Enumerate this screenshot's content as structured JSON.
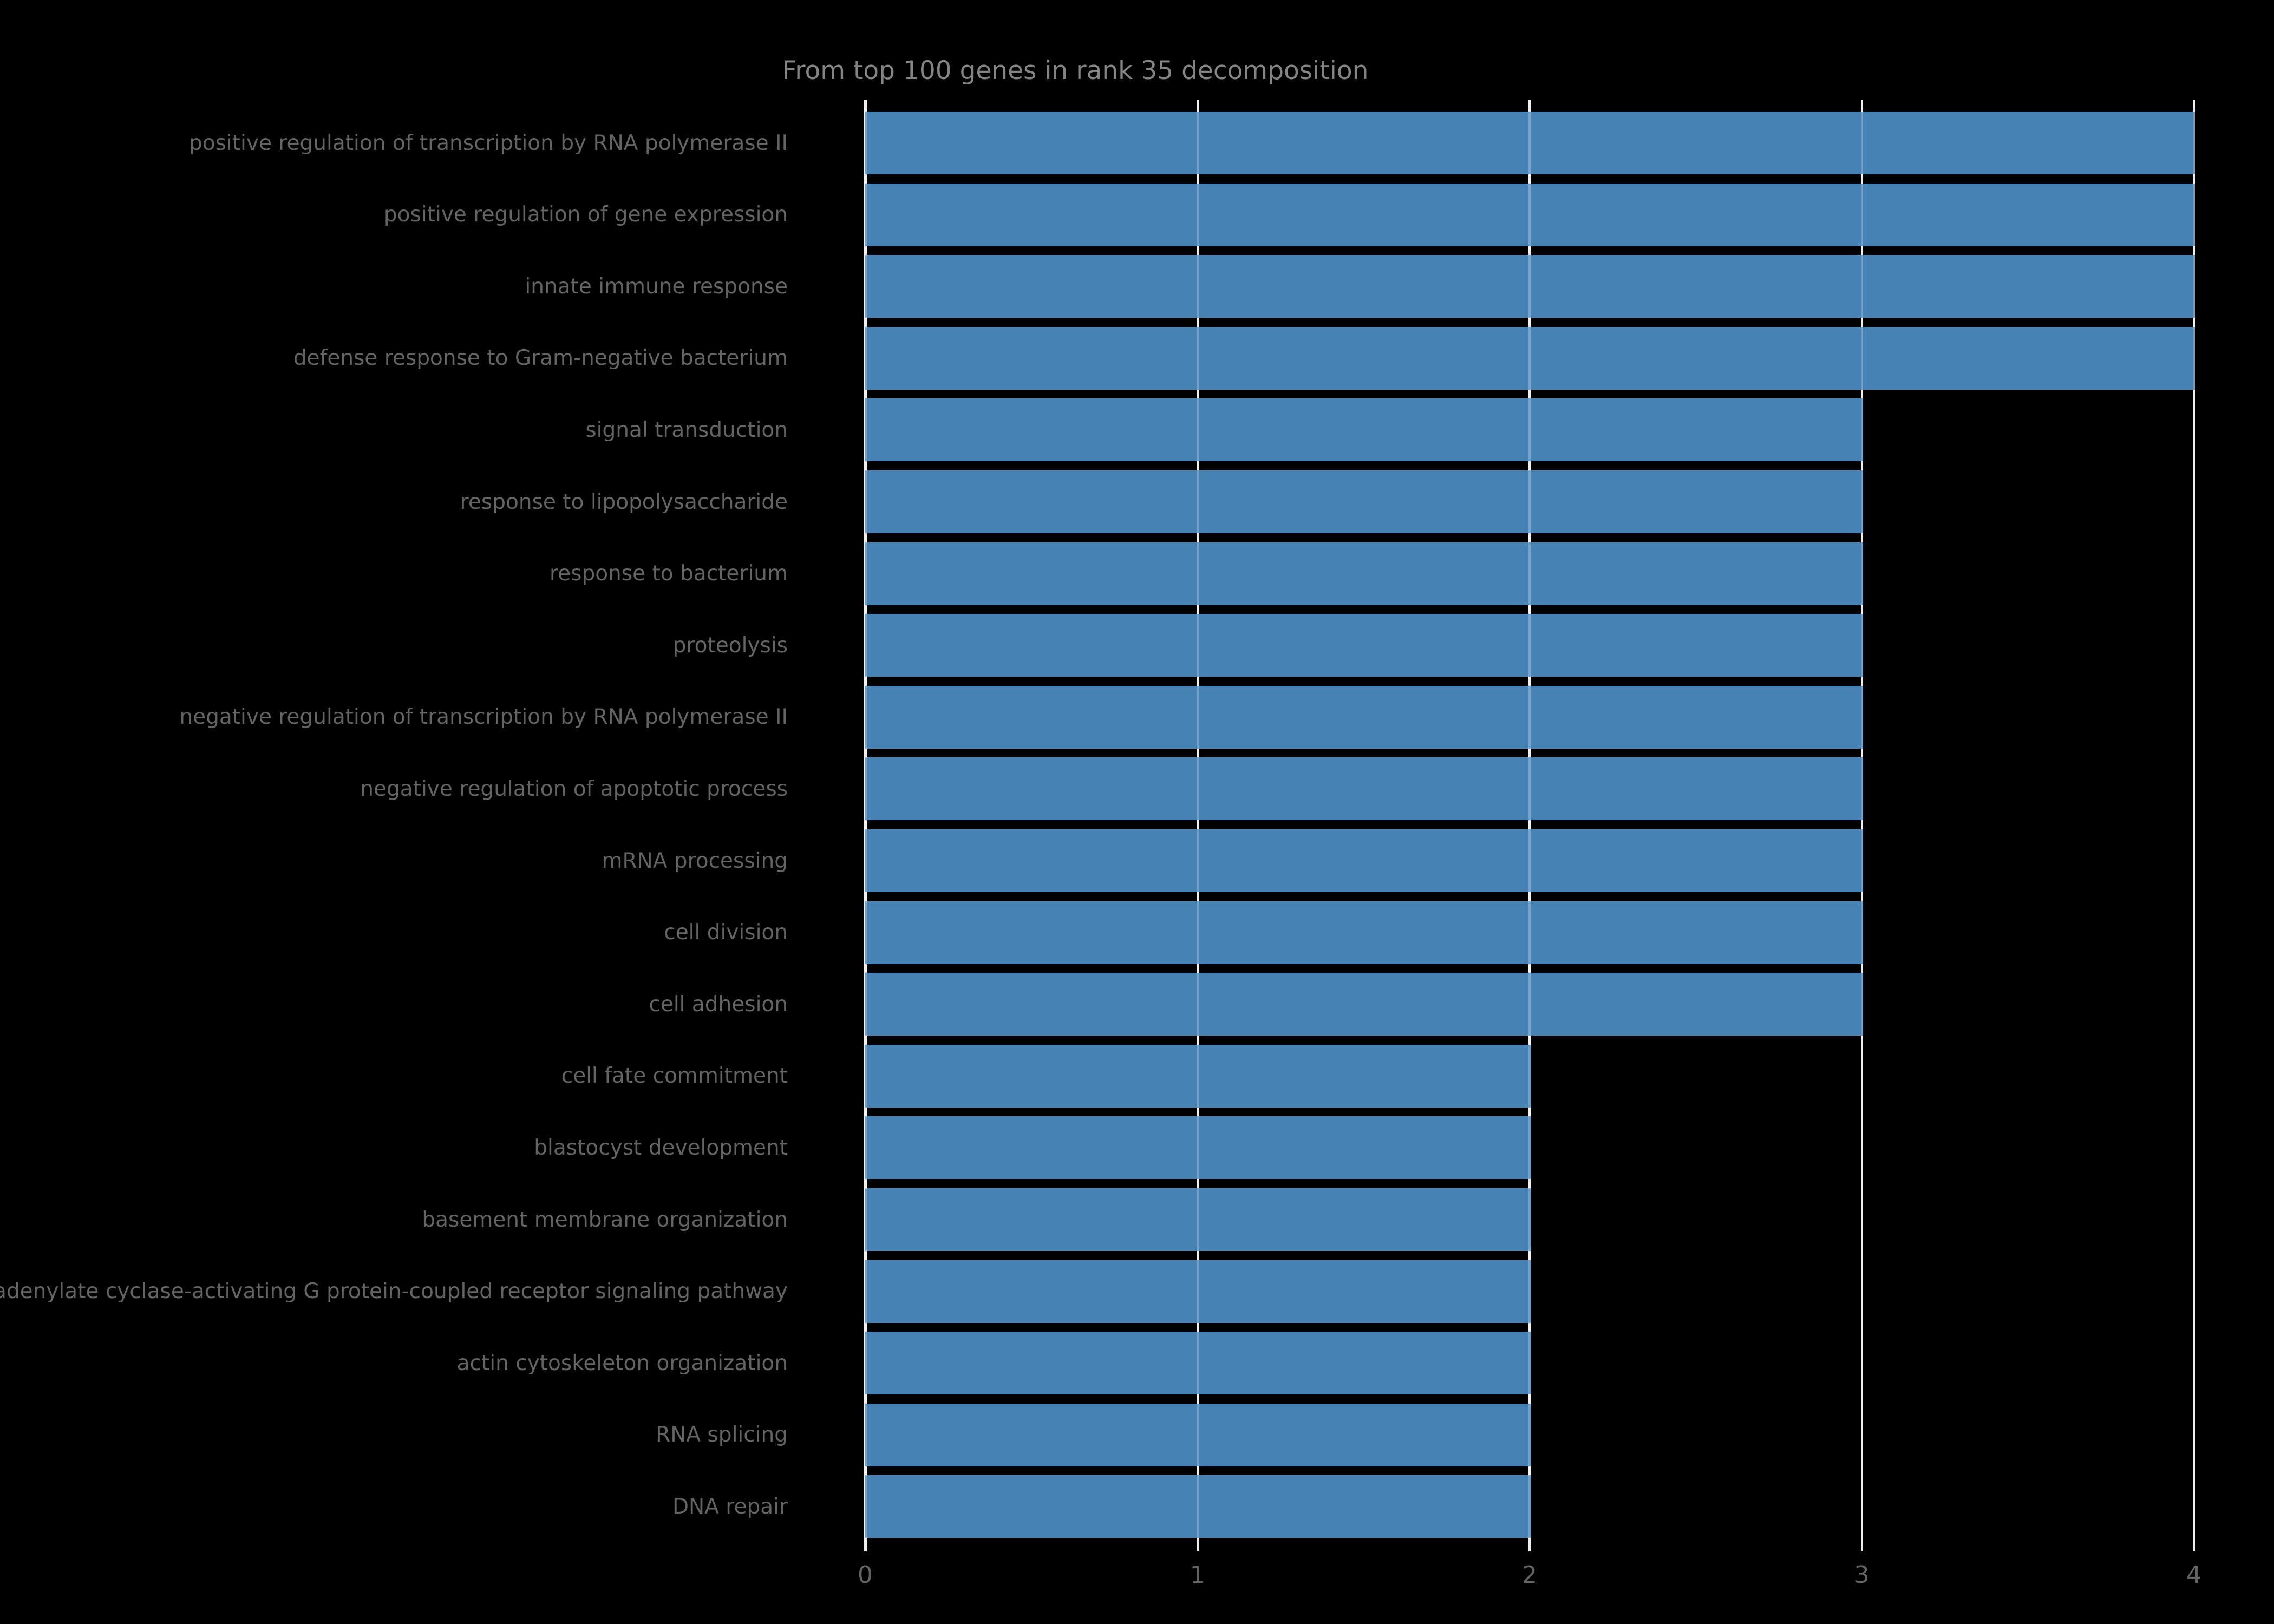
{
  "title": "From top 100 genes in rank 35 decomposition",
  "colors": {
    "background": "#000000",
    "bar": "#4682b4",
    "grid": "#ececec",
    "grid_over_bar": "rgba(255,255,255,0.24)",
    "title_text": "#848484",
    "label_text": "#646464",
    "tick_text": "#646464"
  },
  "chart_data": {
    "type": "bar",
    "orientation": "horizontal",
    "title": "From top 100 genes in rank 35 decomposition",
    "xlabel": "",
    "ylabel": "",
    "xlim": [
      0,
      4
    ],
    "xticks": [
      0,
      1,
      2,
      3,
      4
    ],
    "grid": true,
    "legend": false,
    "categories": [
      "positive regulation of transcription by RNA polymerase II",
      "positive regulation of gene expression",
      "innate immune response",
      "defense response to Gram-negative bacterium",
      "signal transduction",
      "response to lipopolysaccharide",
      "response to bacterium",
      "proteolysis",
      "negative regulation of transcription by RNA polymerase II",
      "negative regulation of apoptotic process",
      "mRNA processing",
      "cell division",
      "cell adhesion",
      "cell fate commitment",
      "blastocyst development",
      "basement membrane organization",
      "adenylate cyclase-activating G protein-coupled receptor signaling pathway",
      "actin cytoskeleton organization",
      "RNA splicing",
      "DNA repair"
    ],
    "values": [
      4,
      4,
      4,
      4,
      3,
      3,
      3,
      3,
      3,
      3,
      3,
      3,
      3,
      2,
      2,
      2,
      2,
      2,
      2,
      2
    ]
  }
}
